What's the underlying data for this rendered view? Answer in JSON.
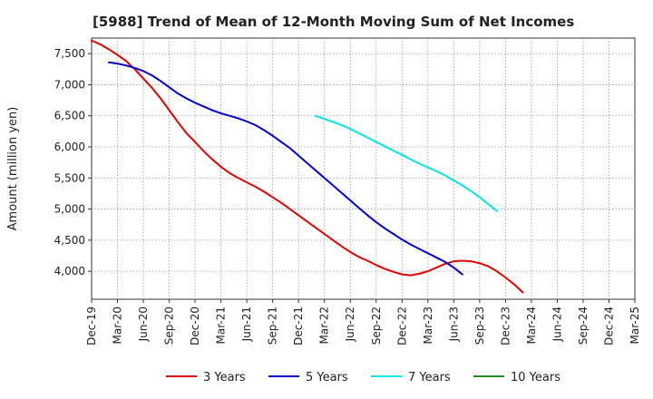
{
  "chart_data": {
    "type": "line",
    "title": "[5988]  Trend of Mean of 12-Month Moving Sum of Net Incomes",
    "xlabel": "",
    "ylabel": "Amount (million yen)",
    "ylim": [
      3550,
      7750
    ],
    "y_ticks": [
      4000,
      4500,
      5000,
      5500,
      6000,
      6500,
      7000,
      7500
    ],
    "y_tick_labels": [
      "4,000",
      "4,500",
      "5,000",
      "5,500",
      "6,000",
      "6,500",
      "7,000",
      "7,500"
    ],
    "x_tick_labels": [
      "Dec-19",
      "Mar-20",
      "Jun-20",
      "Sep-20",
      "Dec-20",
      "Mar-21",
      "Jun-21",
      "Sep-21",
      "Dec-21",
      "Mar-22",
      "Jun-22",
      "Sep-22",
      "Dec-22",
      "Mar-23",
      "Jun-23",
      "Sep-23",
      "Dec-23",
      "Mar-24",
      "Jun-24",
      "Sep-24",
      "Dec-24",
      "Mar-25"
    ],
    "grid": true,
    "series": [
      {
        "name": "3 Years",
        "color": "#e00000",
        "start_index": 0,
        "values": [
          7710,
          7650,
          7570,
          7480,
          7380,
          7250,
          7100,
          6950,
          6780,
          6590,
          6400,
          6220,
          6080,
          5930,
          5800,
          5680,
          5580,
          5500,
          5430,
          5360,
          5280,
          5190,
          5100,
          5000,
          4900,
          4800,
          4700,
          4600,
          4500,
          4400,
          4310,
          4230,
          4170,
          4100,
          4040,
          3990,
          3950,
          3935,
          3960,
          4000,
          4060,
          4120,
          4160,
          4170,
          4160,
          4130,
          4080,
          4000,
          3900,
          3790,
          3660
        ]
      },
      {
        "name": "5 Years",
        "color": "#0000cc",
        "start_index": 2,
        "values": [
          7360,
          7340,
          7310,
          7270,
          7220,
          7150,
          7060,
          6960,
          6860,
          6780,
          6710,
          6650,
          6590,
          6540,
          6500,
          6460,
          6410,
          6350,
          6270,
          6180,
          6080,
          5980,
          5860,
          5740,
          5620,
          5500,
          5380,
          5260,
          5140,
          5020,
          4900,
          4790,
          4690,
          4600,
          4510,
          4430,
          4360,
          4290,
          4220,
          4150,
          4060,
          3950
        ]
      },
      {
        "name": "7 Years",
        "color": "#00e5e5",
        "start_index": 26,
        "values": [
          6500,
          6450,
          6400,
          6350,
          6290,
          6220,
          6150,
          6080,
          6010,
          5940,
          5870,
          5800,
          5730,
          5670,
          5610,
          5540,
          5460,
          5380,
          5290,
          5190,
          5080,
          4970
        ]
      },
      {
        "name": "10 Years",
        "color": "#228b22",
        "start_index": 0,
        "values": []
      }
    ]
  }
}
